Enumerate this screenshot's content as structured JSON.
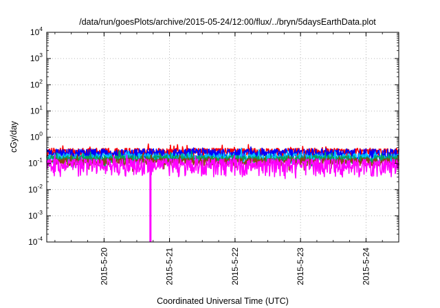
{
  "chart_data": {
    "type": "line",
    "title": "/data/run/goesPlots/archive/2015-05-24/12:00/flux/../bryn/5daysEarthData.plot",
    "xlabel": "Coordinated Universal Time (UTC)",
    "ylabel": "cGy/day",
    "yscale": "log",
    "ylim": [
      0.0001,
      10000
    ],
    "yticks": [
      {
        "value": 0.0001,
        "base": "10",
        "exp": "-4"
      },
      {
        "value": 0.001,
        "base": "10",
        "exp": "-3"
      },
      {
        "value": 0.01,
        "base": "10",
        "exp": "-2"
      },
      {
        "value": 0.1,
        "base": "10",
        "exp": "-1"
      },
      {
        "value": 1,
        "base": "10",
        "exp": "0"
      },
      {
        "value": 10,
        "base": "10",
        "exp": "1"
      },
      {
        "value": 100,
        "base": "10",
        "exp": "2"
      },
      {
        "value": 1000,
        "base": "10",
        "exp": "3"
      },
      {
        "value": 10000,
        "base": "10",
        "exp": "4"
      }
    ],
    "xlim": [
      "2015-05-19 03:00",
      "2015-05-24 12:00"
    ],
    "xticks": [
      "2015-5-20",
      "2015-5-21",
      "2015-5-22",
      "2015-5-23",
      "2015-5-24"
    ],
    "grid": true,
    "series": [
      {
        "color": "#ff0000",
        "level": 0.28,
        "spread": 0.1
      },
      {
        "color": "#0000ff",
        "level": 0.24,
        "spread": 0.12
      },
      {
        "color": "#00bfff",
        "level": 0.17,
        "spread": 0.07
      },
      {
        "color": "#00a060",
        "level": 0.15,
        "spread": 0.05
      },
      {
        "color": "#8b4513",
        "level": 0.12,
        "spread": 0.04
      },
      {
        "color": "#ff00ff",
        "level": 0.09,
        "spread": 0.06
      }
    ],
    "annotations": [
      {
        "series_color": "#ff00ff",
        "time": "2015-05-20 17:00",
        "min_value": 0.0001
      }
    ]
  }
}
